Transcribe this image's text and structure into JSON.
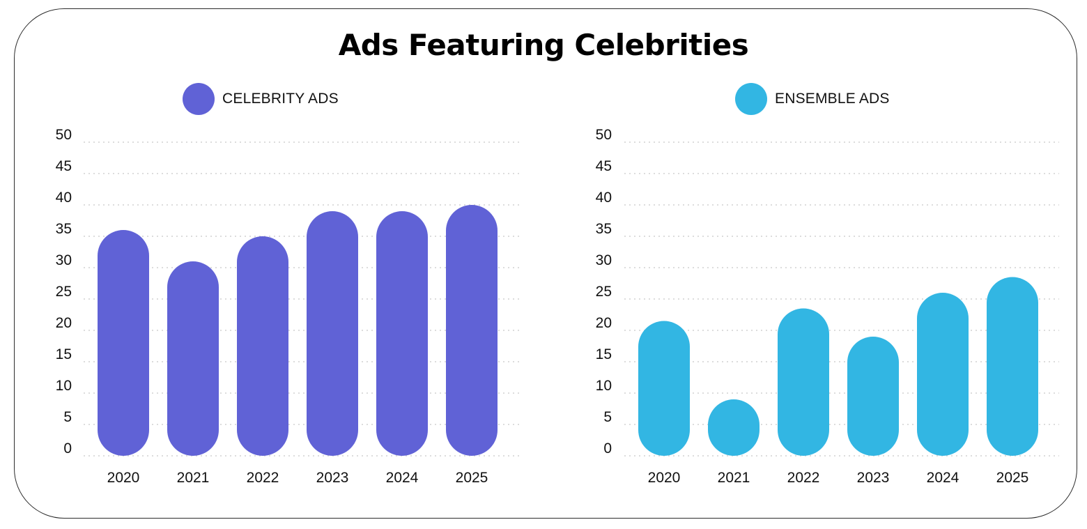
{
  "title": "Ads Featuring Celebrities",
  "chart_data": [
    {
      "type": "bar",
      "legend_label": "CELEBRITY ADS",
      "color": "#6062D6",
      "categories": [
        "2020",
        "2021",
        "2022",
        "2023",
        "2024",
        "2025"
      ],
      "values": [
        36,
        31,
        35,
        39,
        39,
        40
      ],
      "yticks": [
        "0",
        "5",
        "10",
        "15",
        "20",
        "25",
        "30",
        "35",
        "40",
        "45",
        "50"
      ],
      "ylim": [
        0,
        50
      ]
    },
    {
      "type": "bar",
      "legend_label": "ENSEMBLE ADS",
      "color": "#32B6E3",
      "categories": [
        "2020",
        "2021",
        "2022",
        "2023",
        "2024",
        "2025"
      ],
      "values": [
        21.5,
        9,
        23.5,
        19,
        26,
        28.5
      ],
      "yticks": [
        "0",
        "5",
        "10",
        "15",
        "20",
        "25",
        "30",
        "35",
        "40",
        "45",
        "50"
      ],
      "ylim": [
        0,
        50
      ]
    }
  ]
}
